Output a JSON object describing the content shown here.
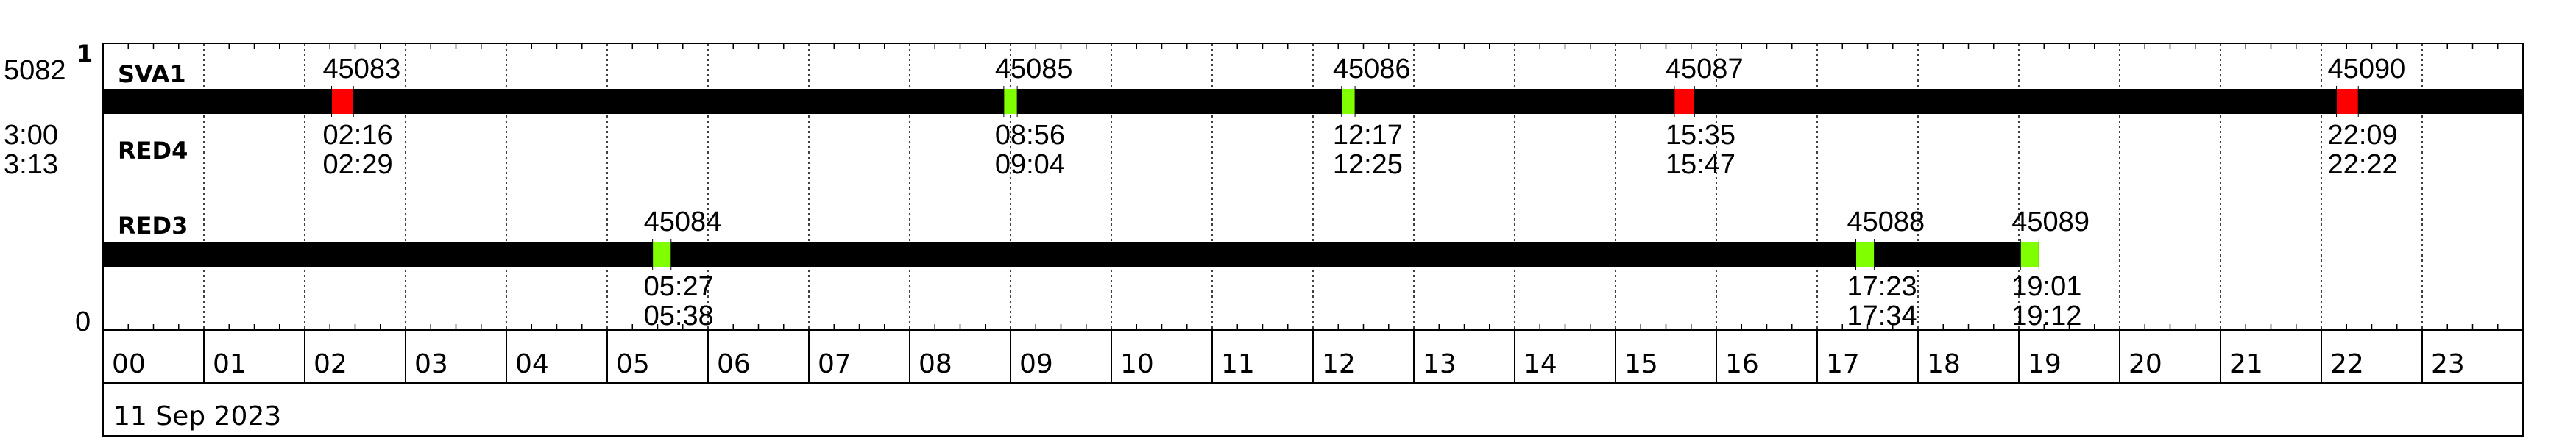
{
  "chart_data": {
    "type": "timeline",
    "date_label": "11 Sep 2023",
    "x_ticks": [
      "00",
      "01",
      "02",
      "03",
      "04",
      "05",
      "06",
      "07",
      "08",
      "09",
      "10",
      "11",
      "12",
      "13",
      "14",
      "15",
      "16",
      "17",
      "18",
      "19",
      "20",
      "21",
      "22",
      "23"
    ],
    "left_labels": {
      "top_value": "5082",
      "superscript": "1",
      "time_start": "3:00",
      "time_end": "3:13",
      "bottom_value": "0"
    },
    "colors": {
      "bar": "#000000",
      "good": "#80ff00",
      "bad": "#ff0000"
    },
    "tracks": [
      {
        "name": "SVA1",
        "sub_name": "RED4",
        "bar_start": "00:00",
        "bar_end": "24:00",
        "events": [
          {
            "id": "45083",
            "start": "02:16",
            "end": "02:29",
            "status": "bad"
          },
          {
            "id": "45085",
            "start": "08:56",
            "end": "09:04",
            "status": "good"
          },
          {
            "id": "45086",
            "start": "12:17",
            "end": "12:25",
            "status": "good"
          },
          {
            "id": "45087",
            "start": "15:35",
            "end": "15:47",
            "status": "bad"
          },
          {
            "id": "45090",
            "start": "22:09",
            "end": "22:22",
            "status": "bad"
          }
        ]
      },
      {
        "name": "RED3",
        "sub_name": "",
        "bar_start": "00:00",
        "bar_end": "19:12",
        "events": [
          {
            "id": "45084",
            "start": "05:27",
            "end": "05:38",
            "status": "good"
          },
          {
            "id": "45088",
            "start": "17:23",
            "end": "17:34",
            "status": "good"
          },
          {
            "id": "45089",
            "start": "19:01",
            "end": "19:12",
            "status": "good"
          }
        ]
      }
    ]
  }
}
